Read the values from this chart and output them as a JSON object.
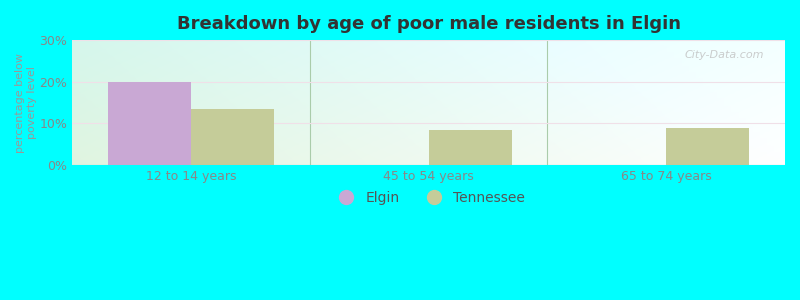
{
  "title": "Breakdown by age of poor male residents in Elgin",
  "ylabel": "percentage below\npoverty level",
  "categories": [
    "12 to 14 years",
    "45 to 54 years",
    "65 to 74 years"
  ],
  "elgin_values": [
    20.0,
    null,
    null
  ],
  "tennessee_values": [
    13.5,
    8.5,
    8.8
  ],
  "ylim": [
    0,
    30
  ],
  "yticks": [
    0,
    10,
    20,
    30
  ],
  "ytick_labels": [
    "0%",
    "10%",
    "20%",
    "30%"
  ],
  "elgin_color": "#c9a8d4",
  "tennessee_color": "#c5cc99",
  "background_color": "#00ffff",
  "bar_width": 0.35,
  "watermark": "City-Data.com",
  "legend_labels": [
    "Elgin",
    "Tennessee"
  ],
  "title_fontsize": 13,
  "axis_label_fontsize": 8,
  "tick_fontsize": 9,
  "group_sep_color": "#aaccaa",
  "grid_color": "#ddeecc",
  "plot_bg": "#e8f5e8"
}
